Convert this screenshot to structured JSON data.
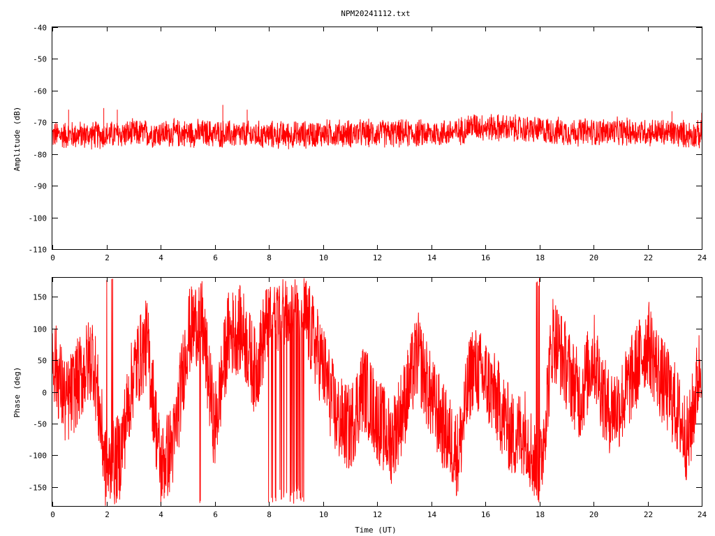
{
  "title": "NPM20241112.txt",
  "colors": {
    "series": "#ff0000",
    "axis": "#000000",
    "background": "#ffffff"
  },
  "chart_data": [
    {
      "type": "line",
      "ylabel": "Amplitude (dB)",
      "xlim": [
        0,
        24
      ],
      "ylim": [
        -110,
        -40
      ],
      "xticks": [
        "0",
        "2",
        "4",
        "6",
        "8",
        "10",
        "12",
        "14",
        "16",
        "18",
        "20",
        "22",
        "24"
      ],
      "yticks": [
        "-40",
        "-50",
        "-60",
        "-70",
        "-80",
        "-90",
        "-100",
        "-110"
      ],
      "grid": false,
      "x": [
        0,
        1,
        2,
        3,
        4,
        5,
        6,
        7,
        8,
        9,
        10,
        11,
        12,
        13,
        14,
        15,
        15.5,
        16,
        17,
        18,
        19,
        20,
        21,
        22,
        23,
        24
      ],
      "y": [
        -74,
        -74,
        -74,
        -73.5,
        -73.5,
        -73.5,
        -73.5,
        -74,
        -74,
        -74,
        -73.5,
        -73.5,
        -73.5,
        -73.5,
        -73.5,
        -73,
        -71,
        -71.5,
        -72,
        -72.5,
        -73,
        -73,
        -73,
        -73,
        -73.5,
        -74
      ],
      "band": [
        -79,
        -69
      ],
      "spikes": [
        {
          "x": 0.6,
          "y": -66
        },
        {
          "x": 1.9,
          "y": -65.5
        },
        {
          "x": 2.4,
          "y": -66
        },
        {
          "x": 6.3,
          "y": -64.5
        },
        {
          "x": 7.2,
          "y": -66
        },
        {
          "x": 22.9,
          "y": -66.5
        },
        {
          "x": 24,
          "y": -67
        }
      ]
    },
    {
      "type": "line",
      "xlabel": "Time (UT)",
      "ylabel": "Phase (deg)",
      "xlim": [
        0,
        24
      ],
      "ylim": [
        -180,
        180
      ],
      "xticks": [
        "0",
        "2",
        "4",
        "6",
        "8",
        "10",
        "12",
        "14",
        "16",
        "18",
        "20",
        "22",
        "24"
      ],
      "yticks": [
        "150",
        "100",
        "50",
        "0",
        "-50",
        "-100",
        "-150"
      ],
      "grid": false,
      "x": [
        0,
        0.5,
        1,
        1.5,
        2,
        2.5,
        3,
        3.5,
        4,
        4.5,
        5,
        5.5,
        6,
        6.5,
        7,
        7.5,
        8,
        8.5,
        9,
        9.5,
        10,
        10.5,
        11,
        11.5,
        12,
        12.5,
        13,
        13.5,
        14,
        14.5,
        15,
        15.5,
        16,
        16.5,
        17,
        17.5,
        18,
        18.5,
        19,
        19.5,
        20,
        20.5,
        21,
        21.5,
        22,
        22.5,
        23,
        23.5,
        24
      ],
      "y": [
        60,
        -20,
        20,
        60,
        -130,
        -100,
        30,
        80,
        -120,
        -80,
        90,
        120,
        -60,
        90,
        100,
        30,
        120,
        140,
        160,
        100,
        40,
        -40,
        -60,
        10,
        -40,
        -80,
        -20,
        60,
        -10,
        -60,
        -100,
        40,
        20,
        -20,
        -70,
        -60,
        -140,
        90,
        40,
        -10,
        60,
        -30,
        -20,
        30,
        80,
        20,
        -20,
        -80,
        60
      ]
    }
  ]
}
